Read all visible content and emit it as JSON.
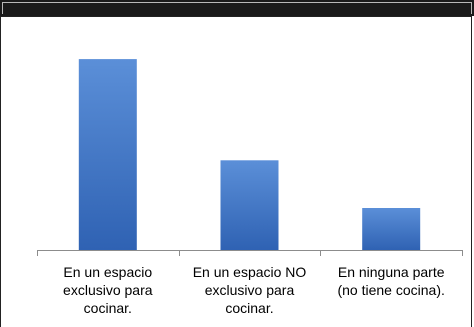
{
  "chart_data": {
    "type": "bar",
    "categories": [
      "En un espacio exclusivo para cocinar.",
      "En un espacio NO exclusivo para cocinar.",
      "En ninguna parte (no tiene cocina)."
    ],
    "category_lines": [
      "En un espacio\nexclusivo para\ncocinar.",
      "En un espacio NO\nexclusivo para\ncocinar.",
      "En ninguna parte\n(no tiene cocina)."
    ],
    "values": [
      100,
      47,
      22
    ],
    "ylim": [
      0,
      110
    ],
    "bar_color_top": "#5b8fd8",
    "bar_color_bottom": "#2f62b3",
    "legend": "none",
    "grid": false
  }
}
